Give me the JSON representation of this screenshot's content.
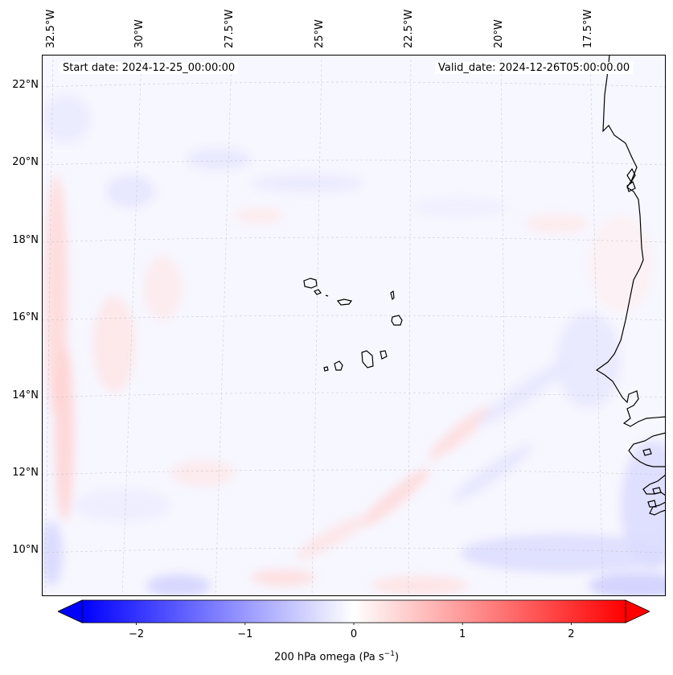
{
  "map": {
    "start_date_text": "Start date: 2024-12-25_00:00:00",
    "valid_date_text": "Valid_date: 2024-12-26T05:00:00.00",
    "lon_labels": [
      "32.5°W",
      "30°W",
      "27.5°W",
      "25°W",
      "22.5°W",
      "20°W",
      "17.5°W"
    ],
    "lat_labels": [
      "22°N",
      "20°N",
      "18°N",
      "16°N",
      "14°N",
      "12°N",
      "10°N"
    ],
    "features": [
      "Cape Verde islands",
      "West African coastline (Mauritania, Senegal, Gambia, Guinea-Bissau)"
    ]
  },
  "colorbar": {
    "label": "200 hPa omega (Pa s",
    "label_exponent": "−1",
    "label_suffix": ")",
    "ticks": [
      "−2",
      "−1",
      "0",
      "1",
      "2"
    ],
    "tick_values": [
      -2,
      -1,
      0,
      1,
      2
    ],
    "range": [
      -2.5,
      2.5
    ],
    "colormap": "bwr",
    "color_low": "#0000ff",
    "color_mid": "#ffffff",
    "color_high": "#ff0000"
  }
}
